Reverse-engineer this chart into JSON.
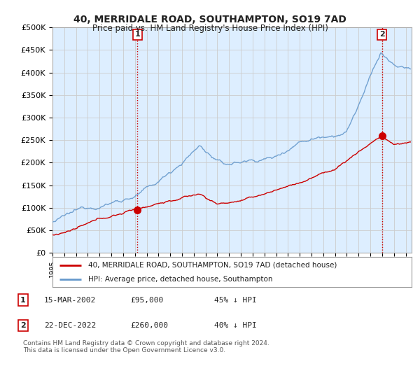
{
  "title": "40, MERRIDALE ROAD, SOUTHAMPTON, SO19 7AD",
  "subtitle": "Price paid vs. HM Land Registry's House Price Index (HPI)",
  "ylabel_ticks": [
    "£0",
    "£50K",
    "£100K",
    "£150K",
    "£200K",
    "£250K",
    "£300K",
    "£350K",
    "£400K",
    "£450K",
    "£500K"
  ],
  "ylim": [
    0,
    500000
  ],
  "xlim_start": 1995.0,
  "xlim_end": 2025.5,
  "sale1_x": 2002.204,
  "sale1_y": 95000,
  "sale2_x": 2022.978,
  "sale2_y": 260000,
  "sale_color": "#cc0000",
  "hpi_color": "#6699cc",
  "vline_color": "#cc0000",
  "grid_color": "#cccccc",
  "bg_color": "#ffffff",
  "chart_bg_color": "#ddeeff",
  "legend_label_red": "40, MERRIDALE ROAD, SOUTHAMPTON, SO19 7AD (detached house)",
  "legend_label_blue": "HPI: Average price, detached house, Southampton",
  "table_rows": [
    {
      "num": "1",
      "date": "15-MAR-2002",
      "price": "£95,000",
      "note": "45% ↓ HPI"
    },
    {
      "num": "2",
      "date": "22-DEC-2022",
      "price": "£260,000",
      "note": "40% ↓ HPI"
    }
  ],
  "footnote": "Contains HM Land Registry data © Crown copyright and database right 2024.\nThis data is licensed under the Open Government Licence v3.0.",
  "font_color": "#222222",
  "title_fontsize": 10,
  "subtitle_fontsize": 8.5
}
